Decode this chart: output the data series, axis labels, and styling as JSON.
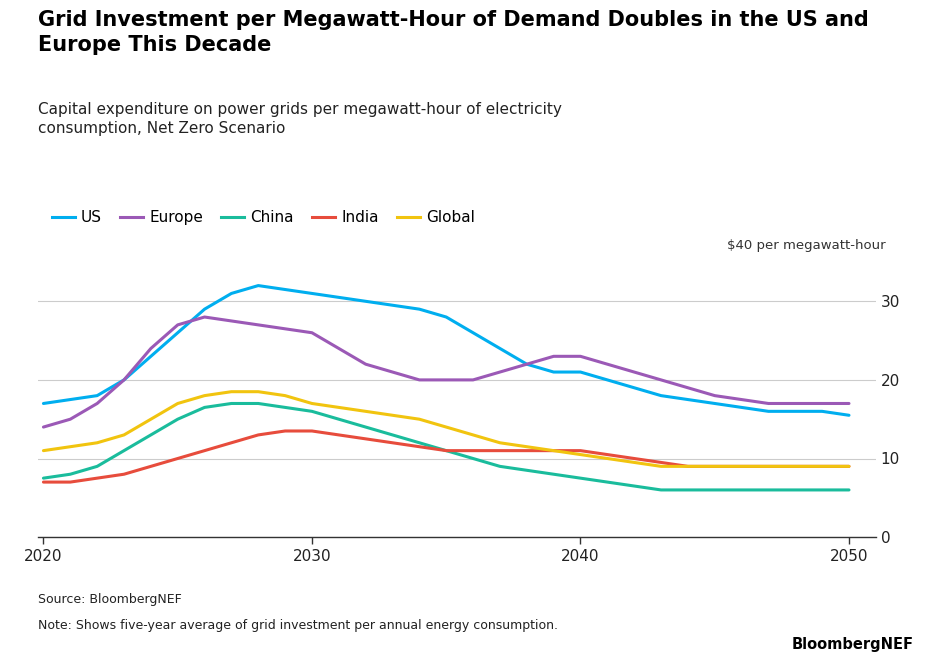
{
  "title": "Grid Investment per Megawatt-Hour of Demand Doubles in the US and\nEurope This Decade",
  "subtitle": "Capital expenditure on power grids per megawatt-hour of electricity\nconsumption, Net Zero Scenario",
  "unit_label": "$40 per megawatt-hour",
  "source": "Source: BloombergNEF",
  "note": "Note: Shows five-year average of grid investment per annual energy consumption.",
  "branding": "BloombergNEF",
  "years": [
    2020,
    2021,
    2022,
    2023,
    2024,
    2025,
    2026,
    2027,
    2028,
    2029,
    2030,
    2031,
    2032,
    2033,
    2034,
    2035,
    2036,
    2037,
    2038,
    2039,
    2040,
    2041,
    2042,
    2043,
    2044,
    2045,
    2046,
    2047,
    2048,
    2049,
    2050
  ],
  "series": {
    "US": {
      "color": "#00AEEF",
      "values": [
        17,
        17.5,
        18,
        20,
        23,
        26,
        29,
        31,
        32,
        31.5,
        31,
        30.5,
        30,
        29.5,
        29,
        28,
        26,
        24,
        22,
        21,
        21,
        20,
        19,
        18,
        17.5,
        17,
        16.5,
        16,
        16,
        16,
        15.5
      ]
    },
    "Europe": {
      "color": "#9B59B6",
      "values": [
        14,
        15,
        17,
        20,
        24,
        27,
        28,
        27.5,
        27,
        26.5,
        26,
        24,
        22,
        21,
        20,
        20,
        20,
        21,
        22,
        23,
        23,
        22,
        21,
        20,
        19,
        18,
        17.5,
        17,
        17,
        17,
        17
      ]
    },
    "China": {
      "color": "#1ABC9C",
      "values": [
        7.5,
        8,
        9,
        11,
        13,
        15,
        16.5,
        17,
        17,
        16.5,
        16,
        15,
        14,
        13,
        12,
        11,
        10,
        9,
        8.5,
        8,
        7.5,
        7,
        6.5,
        6,
        6,
        6,
        6,
        6,
        6,
        6,
        6
      ]
    },
    "India": {
      "color": "#E74C3C",
      "values": [
        7,
        7,
        7.5,
        8,
        9,
        10,
        11,
        12,
        13,
        13.5,
        13.5,
        13,
        12.5,
        12,
        11.5,
        11,
        11,
        11,
        11,
        11,
        11,
        10.5,
        10,
        9.5,
        9,
        9,
        9,
        9,
        9,
        9,
        9
      ]
    },
    "Global": {
      "color": "#F1C40F",
      "values": [
        11,
        11.5,
        12,
        13,
        15,
        17,
        18,
        18.5,
        18.5,
        18,
        17,
        16.5,
        16,
        15.5,
        15,
        14,
        13,
        12,
        11.5,
        11,
        10.5,
        10,
        9.5,
        9,
        9,
        9,
        9,
        9,
        9,
        9,
        9
      ]
    }
  },
  "ylim": [
    0,
    35
  ],
  "yticks": [
    0,
    10,
    20,
    30
  ],
  "xlim": [
    2019.8,
    2051.0
  ],
  "xticks": [
    2020,
    2030,
    2040,
    2050
  ],
  "background_color": "#FFFFFF",
  "grid_color": "#CCCCCC",
  "title_fontsize": 15,
  "subtitle_fontsize": 11,
  "legend_fontsize": 11,
  "tick_fontsize": 11
}
